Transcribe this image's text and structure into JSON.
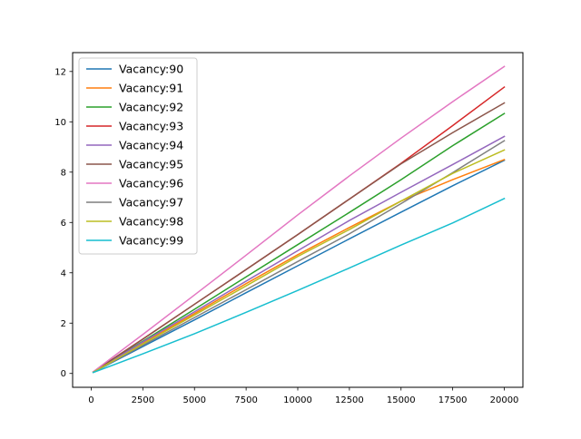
{
  "chart_data": {
    "type": "line",
    "title": "",
    "xlabel": "",
    "ylabel": "",
    "xlim": [
      -900,
      20900
    ],
    "ylim": [
      -0.55,
      12.75
    ],
    "xticks": [
      0,
      2500,
      5000,
      7500,
      10000,
      12500,
      15000,
      17500,
      20000
    ],
    "yticks": [
      0,
      2,
      4,
      6,
      8,
      10,
      12
    ],
    "grid": false,
    "legend_position": "upper-left",
    "x": [
      100,
      2500,
      5000,
      7500,
      10000,
      12500,
      15000,
      17500,
      20000
    ],
    "series": [
      {
        "name": "Vacancy:90",
        "color": "#1f77b4",
        "values": [
          0.05,
          1.07,
          2.13,
          3.21,
          4.28,
          5.35,
          6.41,
          7.46,
          8.47
        ]
      },
      {
        "name": "Vacancy:91",
        "color": "#ff7f0e",
        "values": [
          0.05,
          1.2,
          2.38,
          3.57,
          4.72,
          5.8,
          6.85,
          7.7,
          8.5
        ]
      },
      {
        "name": "Vacancy:92",
        "color": "#2ca02c",
        "values": [
          0.06,
          1.28,
          2.55,
          3.84,
          5.12,
          6.4,
          7.7,
          9.05,
          10.33
        ]
      },
      {
        "name": "Vacancy:93",
        "color": "#d62728",
        "values": [
          0.06,
          1.37,
          2.75,
          4.13,
          5.52,
          6.93,
          8.35,
          9.85,
          11.38
        ]
      },
      {
        "name": "Vacancy:94",
        "color": "#9467bd",
        "values": [
          0.06,
          1.25,
          2.45,
          3.67,
          4.88,
          6.08,
          7.2,
          8.3,
          9.42
        ]
      },
      {
        "name": "Vacancy:95",
        "color": "#8c564b",
        "values": [
          0.06,
          1.36,
          2.75,
          4.13,
          5.52,
          6.93,
          8.33,
          9.57,
          10.75
        ]
      },
      {
        "name": "Vacancy:96",
        "color": "#e377c2",
        "values": [
          0.07,
          1.55,
          3.12,
          4.7,
          6.3,
          7.85,
          9.35,
          10.8,
          12.2
        ]
      },
      {
        "name": "Vacancy:97",
        "color": "#7f7f7f",
        "values": [
          0.05,
          1.12,
          2.22,
          3.33,
          4.45,
          5.55,
          6.75,
          7.98,
          9.25
        ]
      },
      {
        "name": "Vacancy:98",
        "color": "#bcbd22",
        "values": [
          0.05,
          1.17,
          2.32,
          3.48,
          4.65,
          5.72,
          6.85,
          7.95,
          8.88
        ]
      },
      {
        "name": "Vacancy:99",
        "color": "#17becf",
        "values": [
          0.04,
          0.78,
          1.58,
          2.43,
          3.3,
          4.19,
          5.1,
          5.98,
          6.95
        ]
      }
    ]
  }
}
